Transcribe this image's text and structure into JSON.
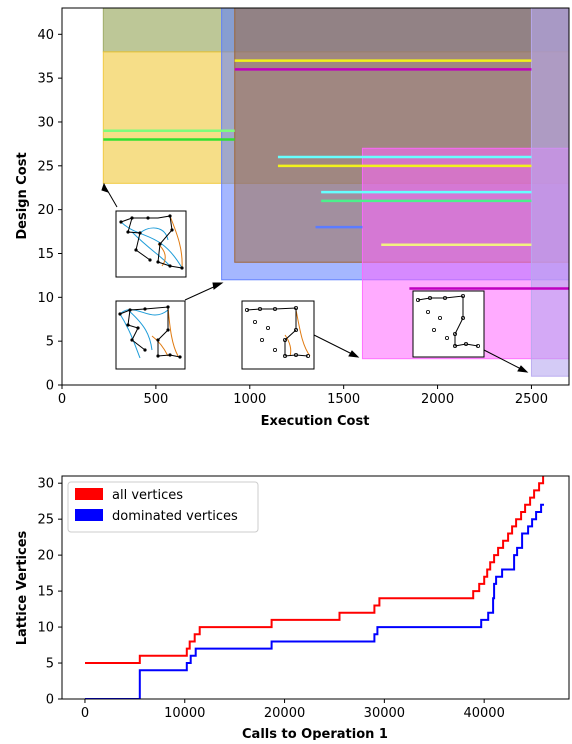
{
  "charts": [
    {
      "type": "area",
      "title": "",
      "xlabel": "Execution Cost",
      "ylabel": "Design Cost",
      "xlim": [
        0,
        2700
      ],
      "ylim": [
        0,
        43
      ],
      "xticks": [
        0,
        500,
        1000,
        1500,
        2000,
        2500
      ],
      "yticks": [
        0,
        5,
        10,
        15,
        20,
        25,
        30,
        35,
        40
      ],
      "grid": false,
      "rects": [
        {
          "x0": 220,
          "x1": 2700,
          "y0": 38,
          "y1": 43,
          "color": "#9aa960",
          "opacity": 0.65
        },
        {
          "x0": 220,
          "x1": 2700,
          "y0": 23,
          "y1": 38,
          "color": "#f0c838",
          "opacity": 0.6
        },
        {
          "x0": 850,
          "x1": 2700,
          "y0": 12,
          "y1": 43,
          "color": "#5b7cff",
          "opacity": 0.55
        },
        {
          "x0": 920,
          "x1": 2700,
          "y0": 14,
          "y1": 43,
          "color": "#a0602a",
          "opacity": 0.45
        },
        {
          "x0": 1600,
          "x1": 2700,
          "y0": 3,
          "y1": 27,
          "color": "#ff66ff",
          "opacity": 0.55
        },
        {
          "x0": 2500,
          "x1": 2700,
          "y0": 1,
          "y1": 43,
          "color": "#b8a8f0",
          "opacity": 0.6
        }
      ],
      "lines": [
        {
          "x0": 920,
          "x1": 2500,
          "y": 37,
          "color": "#f2f21a"
        },
        {
          "x0": 920,
          "x1": 2500,
          "y": 36,
          "color": "#c000c0"
        },
        {
          "x0": 220,
          "x1": 920,
          "y": 29,
          "color": "#7dfc7d"
        },
        {
          "x0": 220,
          "x1": 920,
          "y": 28,
          "color": "#30e030"
        },
        {
          "x0": 1150,
          "x1": 2500,
          "y": 26,
          "color": "#66ffff"
        },
        {
          "x0": 1150,
          "x1": 2500,
          "y": 25,
          "color": "#f2f21a"
        },
        {
          "x0": 1380,
          "x1": 2500,
          "y": 22,
          "color": "#66ffff"
        },
        {
          "x0": 1380,
          "x1": 2500,
          "y": 21,
          "color": "#4cf08c"
        },
        {
          "x0": 1350,
          "x1": 1600,
          "y": 18,
          "color": "#5b7cff"
        },
        {
          "x0": 1700,
          "x1": 2500,
          "y": 16,
          "color": "#f2f280"
        },
        {
          "x0": 1850,
          "x1": 2700,
          "y": 11,
          "color": "#c000c0"
        }
      ],
      "insets": [
        {
          "name": "inset-graph-1",
          "arrow_to": [
            220,
            23
          ]
        },
        {
          "name": "inset-graph-2",
          "arrow_to": [
            850,
            12
          ]
        },
        {
          "name": "inset-graph-3",
          "arrow_to": [
            1600,
            3
          ]
        },
        {
          "name": "inset-graph-4",
          "arrow_to": [
            2500,
            1
          ]
        }
      ]
    },
    {
      "type": "line",
      "title": "",
      "xlabel": "Calls to Operation 1",
      "ylabel": "Lattice Vertices",
      "xlim": [
        -2300,
        48500
      ],
      "ylim": [
        0,
        31
      ],
      "xticks": [
        0,
        10000,
        20000,
        30000,
        40000
      ],
      "yticks": [
        0,
        5,
        10,
        15,
        20,
        25,
        30
      ],
      "grid": false,
      "legend": {
        "position": "top-left",
        "entries": [
          "all vertices",
          "dominated vertices"
        ]
      },
      "series": [
        {
          "name": "all vertices",
          "color": "#ff0000",
          "points": [
            [
              0,
              5
            ],
            [
              5500,
              5
            ],
            [
              5500,
              6
            ],
            [
              10200,
              6
            ],
            [
              10200,
              7
            ],
            [
              10500,
              7
            ],
            [
              10500,
              8
            ],
            [
              11000,
              8
            ],
            [
              11000,
              9
            ],
            [
              11500,
              9
            ],
            [
              11500,
              10
            ],
            [
              18700,
              10
            ],
            [
              18700,
              11
            ],
            [
              25500,
              11
            ],
            [
              25500,
              12
            ],
            [
              29000,
              12
            ],
            [
              29000,
              13
            ],
            [
              29500,
              13
            ],
            [
              29500,
              14
            ],
            [
              38900,
              14
            ],
            [
              38900,
              15
            ],
            [
              39500,
              15
            ],
            [
              39500,
              16
            ],
            [
              40000,
              16
            ],
            [
              40000,
              17
            ],
            [
              40300,
              17
            ],
            [
              40300,
              18
            ],
            [
              40600,
              18
            ],
            [
              40600,
              19
            ],
            [
              41000,
              19
            ],
            [
              41000,
              20
            ],
            [
              41400,
              20
            ],
            [
              41400,
              21
            ],
            [
              41900,
              21
            ],
            [
              41900,
              22
            ],
            [
              42400,
              22
            ],
            [
              42400,
              23
            ],
            [
              42800,
              23
            ],
            [
              42800,
              24
            ],
            [
              43200,
              24
            ],
            [
              43200,
              25
            ],
            [
              43700,
              25
            ],
            [
              43700,
              26
            ],
            [
              44100,
              26
            ],
            [
              44100,
              27
            ],
            [
              44600,
              27
            ],
            [
              44600,
              28
            ],
            [
              45000,
              28
            ],
            [
              45000,
              29
            ],
            [
              45500,
              29
            ],
            [
              45500,
              30
            ],
            [
              45900,
              30
            ],
            [
              45900,
              31
            ]
          ]
        },
        {
          "name": "dominated vertices",
          "color": "#0000ff",
          "points": [
            [
              0,
              0
            ],
            [
              5500,
              0
            ],
            [
              5500,
              4
            ],
            [
              10200,
              4
            ],
            [
              10200,
              5
            ],
            [
              10600,
              5
            ],
            [
              10600,
              6
            ],
            [
              11100,
              6
            ],
            [
              11100,
              7
            ],
            [
              18700,
              7
            ],
            [
              18700,
              8
            ],
            [
              29000,
              8
            ],
            [
              29000,
              9
            ],
            [
              29300,
              9
            ],
            [
              29300,
              10
            ],
            [
              39700,
              10
            ],
            [
              39700,
              11
            ],
            [
              40400,
              11
            ],
            [
              40400,
              12
            ],
            [
              40900,
              12
            ],
            [
              40900,
              14
            ],
            [
              41000,
              14
            ],
            [
              41000,
              16
            ],
            [
              41200,
              16
            ],
            [
              41200,
              17
            ],
            [
              41800,
              17
            ],
            [
              41800,
              18
            ],
            [
              43000,
              18
            ],
            [
              43000,
              20
            ],
            [
              43300,
              20
            ],
            [
              43300,
              21
            ],
            [
              43800,
              21
            ],
            [
              43800,
              23
            ],
            [
              44400,
              23
            ],
            [
              44400,
              24
            ],
            [
              44800,
              24
            ],
            [
              44800,
              25
            ],
            [
              45200,
              25
            ],
            [
              45200,
              26
            ],
            [
              45700,
              26
            ],
            [
              45700,
              27
            ],
            [
              46000,
              27
            ]
          ]
        }
      ]
    }
  ]
}
